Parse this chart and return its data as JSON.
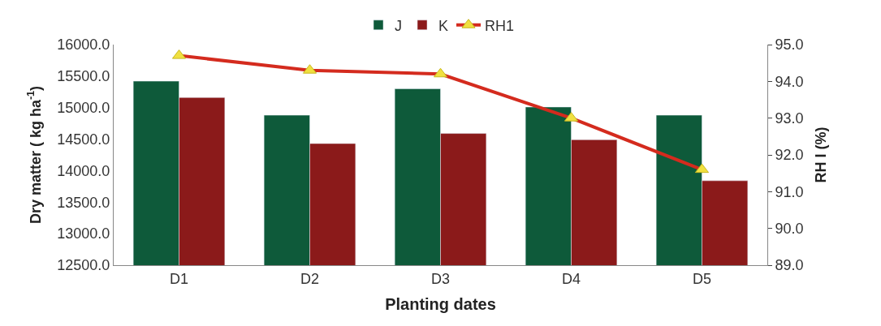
{
  "chart_data": {
    "type": "bar",
    "xlabel": "Planting dates",
    "ylabel": "Dry matter ( kg ha$^{-1}$)",
    "y2label": "RH I (%)",
    "categories": [
      "D1",
      "D2",
      "D3",
      "D4",
      "D5"
    ],
    "series": [
      {
        "name": "J",
        "color": "#0e5a3a",
        "values": [
          15420,
          14880,
          15300,
          15010,
          14880
        ]
      },
      {
        "name": "K",
        "color": "#8b1a1a",
        "values": [
          15160,
          14430,
          14590,
          14490,
          13840
        ]
      },
      {
        "name": "RH1",
        "type": "line",
        "axis": "y2",
        "color": "#d42b1e",
        "marker": "triangle",
        "values": [
          94.7,
          94.3,
          94.2,
          93.0,
          91.6
        ]
      }
    ],
    "ylim": [
      12500,
      16000
    ],
    "yticks": [
      {
        "value": 12500,
        "label": "12500.0"
      },
      {
        "value": 13000,
        "label": "13000.0"
      },
      {
        "value": 13500,
        "label": "13500.0"
      },
      {
        "value": 14000,
        "label": "14000.0"
      },
      {
        "value": 14500,
        "label": "14500.0"
      },
      {
        "value": 15000,
        "label": "15000.0"
      },
      {
        "value": 15500,
        "label": "15500.0"
      },
      {
        "value": 16000,
        "label": "16000.0"
      }
    ],
    "y2lim": [
      89,
      95
    ],
    "y2ticks": [
      {
        "value": 89,
        "label": "89.0"
      },
      {
        "value": 90,
        "label": "90.0"
      },
      {
        "value": 91,
        "label": "91.0"
      },
      {
        "value": 92,
        "label": "92.0"
      },
      {
        "value": 93,
        "label": "93.0"
      },
      {
        "value": 94,
        "label": "94.0"
      },
      {
        "value": 95,
        "label": "95.0"
      }
    ],
    "legend": "top"
  }
}
